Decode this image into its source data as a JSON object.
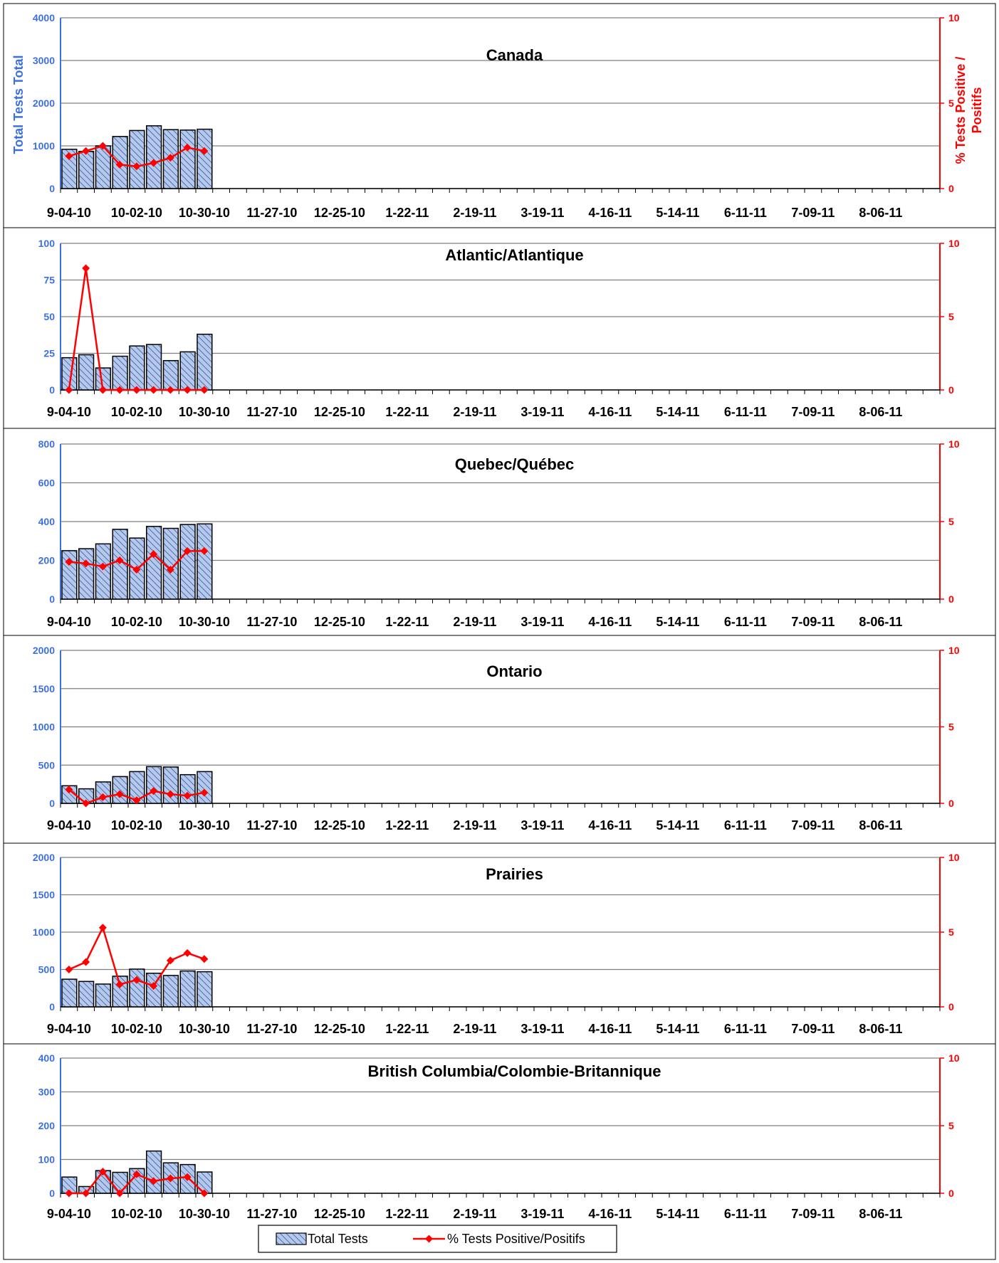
{
  "colors": {
    "bar_fill": "#b7c9ea",
    "bar_hatch": "#4a6fb5",
    "bar_border": "#000000",
    "line": "#ff0000",
    "left_axis": "#3c6fe0",
    "right_axis": "#ff0000",
    "grid": "#808080"
  },
  "legend": {
    "bars": "Total Tests",
    "line": "% Tests Positive/Positifs"
  },
  "chart_data": [
    {
      "type": "bar",
      "title": "Canada",
      "ylabel": "Total Tests Total",
      "y2label_line1": "% Tests Positive /",
      "y2label_line2": "Positifs",
      "ylim": [
        0,
        4000
      ],
      "y2lim": [
        0,
        10
      ],
      "yticks": [
        "0",
        "1000",
        "2000",
        "3000",
        "4000"
      ],
      "y2ticks": [
        "0",
        "5",
        "10"
      ],
      "xticks": [
        "9-04-10",
        "10-02-10",
        "10-30-10",
        "11-27-10",
        "12-25-10",
        "1-22-11",
        "2-19-11",
        "3-19-11",
        "4-16-11",
        "5-14-11",
        "6-11-11",
        "7-09-11",
        "8-06-11"
      ],
      "series": [
        {
          "name": "Total Tests",
          "values": [
            920,
            870,
            1000,
            1220,
            1360,
            1470,
            1380,
            1370,
            1390
          ]
        },
        {
          "name": "% Tests Positive/Positifs",
          "values": [
            1.9,
            2.2,
            2.5,
            1.4,
            1.3,
            1.5,
            1.8,
            2.4,
            2.2
          ]
        }
      ]
    },
    {
      "type": "bar",
      "title": "Atlantic/Atlantique",
      "ylim": [
        0,
        100
      ],
      "y2lim": [
        0,
        10
      ],
      "yticks": [
        "0",
        "25",
        "50",
        "75",
        "100"
      ],
      "y2ticks": [
        "0",
        "5",
        "10"
      ],
      "xticks": [
        "9-04-10",
        "10-02-10",
        "10-30-10",
        "11-27-10",
        "12-25-10",
        "1-22-11",
        "2-19-11",
        "3-19-11",
        "4-16-11",
        "5-14-11",
        "6-11-11",
        "7-09-11",
        "8-06-11"
      ],
      "series": [
        {
          "name": "Total Tests",
          "values": [
            22,
            24,
            15,
            23,
            30,
            31,
            20,
            26,
            38
          ]
        },
        {
          "name": "% Tests Positive/Positifs",
          "values": [
            0,
            8.3,
            0,
            0,
            0,
            0,
            0,
            0,
            0
          ]
        }
      ]
    },
    {
      "type": "bar",
      "title": "Quebec/Québec",
      "ylim": [
        0,
        800
      ],
      "y2lim": [
        0,
        10
      ],
      "yticks": [
        "0",
        "200",
        "400",
        "600",
        "800"
      ],
      "y2ticks": [
        "0",
        "5",
        "10"
      ],
      "xticks": [
        "9-04-10",
        "10-02-10",
        "10-30-10",
        "11-27-10",
        "12-25-10",
        "1-22-11",
        "2-19-11",
        "3-19-11",
        "4-16-11",
        "5-14-11",
        "6-11-11",
        "7-09-11",
        "8-06-11"
      ],
      "series": [
        {
          "name": "Total Tests",
          "values": [
            250,
            260,
            285,
            360,
            315,
            375,
            365,
            385,
            388
          ]
        },
        {
          "name": "% Tests Positive/Positifs",
          "values": [
            2.4,
            2.3,
            2.1,
            2.5,
            1.9,
            2.9,
            1.9,
            3.1,
            3.1
          ]
        }
      ]
    },
    {
      "type": "bar",
      "title": "Ontario",
      "ylim": [
        0,
        2000
      ],
      "y2lim": [
        0,
        10
      ],
      "yticks": [
        "0",
        "500",
        "1000",
        "1500",
        "2000"
      ],
      "y2ticks": [
        "0",
        "5",
        "10"
      ],
      "xticks": [
        "9-04-10",
        "10-02-10",
        "10-30-10",
        "11-27-10",
        "12-25-10",
        "1-22-11",
        "2-19-11",
        "3-19-11",
        "4-16-11",
        "5-14-11",
        "6-11-11",
        "7-09-11",
        "8-06-11"
      ],
      "series": [
        {
          "name": "Total Tests",
          "values": [
            230,
            190,
            280,
            350,
            415,
            480,
            475,
            375,
            415
          ]
        },
        {
          "name": "% Tests Positive/Positifs",
          "values": [
            0.9,
            0,
            0.4,
            0.6,
            0.2,
            0.8,
            0.6,
            0.5,
            0.7
          ]
        }
      ]
    },
    {
      "type": "bar",
      "title": "Prairies",
      "ylim": [
        0,
        2000
      ],
      "y2lim": [
        0,
        10
      ],
      "yticks": [
        "0",
        "500",
        "1000",
        "1500",
        "2000"
      ],
      "y2ticks": [
        "0",
        "5",
        "10"
      ],
      "xticks": [
        "9-04-10",
        "10-02-10",
        "10-30-10",
        "11-27-10",
        "12-25-10",
        "1-22-11",
        "2-19-11",
        "3-19-11",
        "4-16-11",
        "5-14-11",
        "6-11-11",
        "7-09-11",
        "8-06-11"
      ],
      "series": [
        {
          "name": "Total Tests",
          "values": [
            370,
            340,
            305,
            410,
            505,
            450,
            420,
            480,
            470
          ]
        },
        {
          "name": "% Tests Positive/Positifs",
          "values": [
            2.5,
            3.0,
            5.3,
            1.5,
            1.8,
            1.4,
            3.1,
            3.6,
            3.2
          ]
        }
      ]
    },
    {
      "type": "bar",
      "title": "British Columbia/Colombie-Britannique",
      "ylim": [
        0,
        400
      ],
      "y2lim": [
        0,
        10
      ],
      "yticks": [
        "0",
        "100",
        "200",
        "300",
        "400"
      ],
      "y2ticks": [
        "0",
        "5",
        "10"
      ],
      "xticks": [
        "9-04-10",
        "10-02-10",
        "10-30-10",
        "11-27-10",
        "12-25-10",
        "1-22-11",
        "2-19-11",
        "3-19-11",
        "4-16-11",
        "5-14-11",
        "6-11-11",
        "7-09-11",
        "8-06-11"
      ],
      "series": [
        {
          "name": "Total Tests",
          "values": [
            48,
            20,
            67,
            62,
            73,
            125,
            90,
            85,
            63
          ]
        },
        {
          "name": "% Tests Positive/Positifs",
          "values": [
            0,
            0,
            1.6,
            0,
            1.4,
            0.9,
            1.1,
            1.2,
            0
          ]
        }
      ]
    }
  ]
}
